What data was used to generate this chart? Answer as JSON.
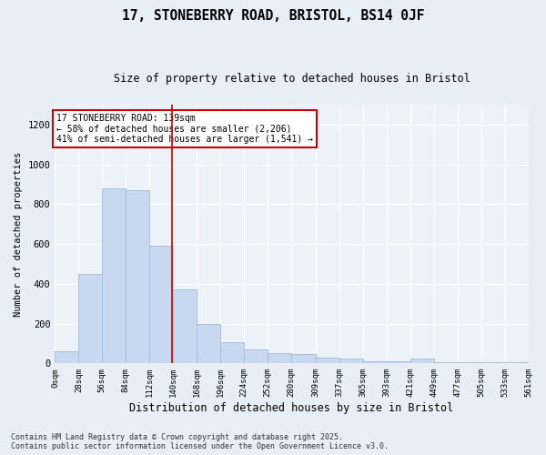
{
  "title1": "17, STONEBERRY ROAD, BRISTOL, BS14 0JF",
  "title2": "Size of property relative to detached houses in Bristol",
  "xlabel": "Distribution of detached houses by size in Bristol",
  "ylabel": "Number of detached properties",
  "bar_color": "#c8d8ee",
  "bar_edge_color": "#a0bcd8",
  "background_color": "#edf1f8",
  "fig_background_color": "#e8eef6",
  "grid_color": "#ffffff",
  "annotation_text": "17 STONEBERRY ROAD: 139sqm\n← 58% of detached houses are smaller (2,206)\n41% of semi-detached houses are larger (1,541) →",
  "vline_x": 139,
  "vline_color": "#cc0000",
  "annotation_box_color": "#cc0000",
  "bins": [
    0,
    28,
    56,
    84,
    112,
    140,
    168,
    196,
    224,
    252,
    280,
    309,
    337,
    365,
    393,
    421,
    449,
    477,
    505,
    533,
    561
  ],
  "counts": [
    60,
    450,
    880,
    870,
    590,
    370,
    200,
    105,
    70,
    50,
    45,
    30,
    25,
    10,
    10,
    25,
    5,
    5,
    5,
    5
  ],
  "ylim": [
    0,
    1300
  ],
  "yticks": [
    0,
    200,
    400,
    600,
    800,
    1000,
    1200
  ],
  "footer": "Contains HM Land Registry data © Crown copyright and database right 2025.\nContains public sector information licensed under the Open Government Licence v3.0."
}
